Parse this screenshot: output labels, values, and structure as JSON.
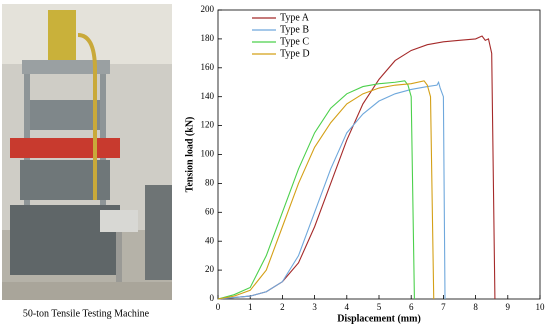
{
  "caption": "50-ton Tensile Testing Machine",
  "chart_data": {
    "type": "line",
    "xlabel": "Displacement (mm)",
    "ylabel": "Tension load (kN)",
    "xlim": [
      0,
      10
    ],
    "ylim": [
      0,
      200
    ],
    "xticks": [
      0,
      1,
      2,
      3,
      4,
      5,
      6,
      7,
      8,
      9,
      10
    ],
    "yticks": [
      0,
      20,
      40,
      60,
      80,
      100,
      120,
      140,
      160,
      180,
      200
    ],
    "legend": "upper-left",
    "series": [
      {
        "name": "Type A",
        "color": "#a52a2a",
        "x": [
          0,
          1,
          1.5,
          2,
          2.5,
          3,
          3.5,
          4,
          4.5,
          5,
          5.5,
          6,
          6.5,
          7,
          7.5,
          8,
          8.2,
          8.3,
          8.4,
          8.5,
          8.6
        ],
        "values": [
          0,
          2,
          5,
          12,
          25,
          50,
          80,
          110,
          135,
          152,
          165,
          172,
          176,
          178,
          179,
          180,
          182,
          179,
          180,
          170,
          0
        ]
      },
      {
        "name": "Type B",
        "color": "#6fa8dc",
        "x": [
          0,
          1,
          1.5,
          2,
          2.5,
          3,
          3.5,
          4,
          4.5,
          5,
          5.5,
          6,
          6.5,
          6.8,
          6.85,
          6.9,
          7.0,
          7.05
        ],
        "values": [
          0,
          2,
          5,
          12,
          30,
          60,
          90,
          115,
          128,
          137,
          142,
          145,
          147,
          148,
          150,
          146,
          140,
          0
        ]
      },
      {
        "name": "Type C",
        "color": "#4cd04c",
        "x": [
          0,
          0.5,
          1,
          1.5,
          2,
          2.5,
          3,
          3.5,
          4,
          4.5,
          5,
          5.5,
          5.8,
          5.9,
          6.0,
          6.1
        ],
        "values": [
          0,
          3,
          8,
          30,
          60,
          90,
          115,
          132,
          142,
          147,
          149,
          150,
          151,
          148,
          140,
          0
        ]
      },
      {
        "name": "Type D",
        "color": "#d4a017",
        "x": [
          0,
          0.5,
          1,
          1.5,
          2,
          2.5,
          3,
          3.5,
          4,
          4.5,
          5,
          5.5,
          6,
          6.4,
          6.5,
          6.6,
          6.7
        ],
        "values": [
          0,
          2,
          6,
          20,
          50,
          80,
          105,
          122,
          135,
          142,
          146,
          148,
          149,
          151,
          148,
          140,
          0
        ]
      }
    ]
  }
}
